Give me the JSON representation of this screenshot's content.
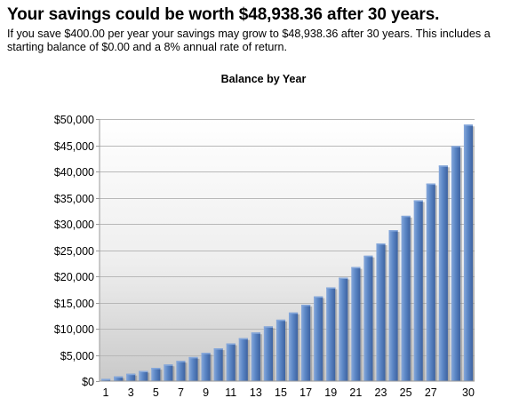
{
  "headline": "Your savings could be worth $48,938.36 after 30 years.",
  "summary": "If you save $400.00 per year your savings may grow to $48,938.36 after 30 years. This includes a starting balance of $0.00 and a 8% annual rate of return.",
  "chart_data": {
    "type": "bar",
    "title": "Balance by Year",
    "xlabel": "",
    "ylabel": "",
    "categories": [
      1,
      2,
      3,
      4,
      5,
      6,
      7,
      8,
      9,
      10,
      11,
      12,
      13,
      14,
      15,
      16,
      17,
      18,
      19,
      20,
      21,
      22,
      23,
      24,
      25,
      26,
      27,
      28,
      29,
      30
    ],
    "x_tick_labels": [
      "1",
      "3",
      "5",
      "7",
      "9",
      "11",
      "13",
      "15",
      "17",
      "19",
      "21",
      "23",
      "25",
      "27",
      "30"
    ],
    "values": [
      432,
      898.56,
      1402.44,
      1946.63,
      2534.36,
      3169.11,
      3854.64,
      4594.01,
      5392.53,
      6254.93,
      7186.32,
      8192.22,
      9278.6,
      10451.89,
      11719.04,
      13087.56,
      14565.57,
      16161.81,
      17885.76,
      19747.62,
      21758.43,
      23930.11,
      26275.52,
      28808.57,
      31544.25,
      34498.79,
      37689.69,
      41135.87,
      44857.74,
      48938.36
    ],
    "ylim": [
      0,
      50000
    ],
    "y_ticks": [
      0,
      5000,
      10000,
      15000,
      20000,
      25000,
      30000,
      35000,
      40000,
      45000,
      50000
    ],
    "y_tick_labels": [
      "$0",
      "$5,000",
      "$10,000",
      "$15,000",
      "$20,000",
      "$25,000",
      "$30,000",
      "$35,000",
      "$40,000",
      "$45,000",
      "$50,000"
    ],
    "grid": true,
    "legend": "none",
    "bar_color": "#5b86c5",
    "bar_dark": "#3d62a0",
    "bar_light": "#86a8db"
  }
}
